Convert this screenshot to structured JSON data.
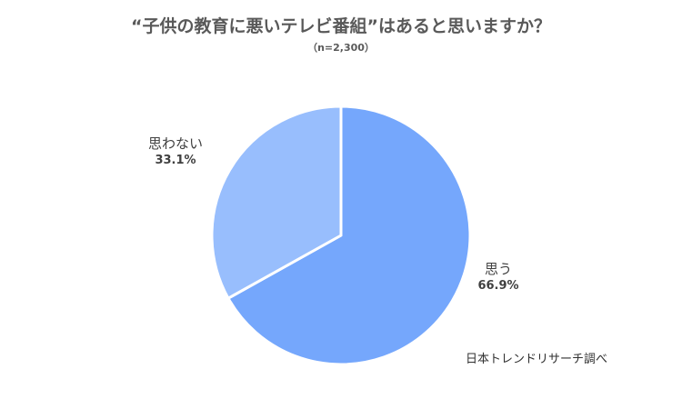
{
  "chart_data": {
    "type": "pie",
    "title": "“子供の教育に悪いテレビ番組”はあると思いますか？",
    "subtitle": "（n=2,300）",
    "slices": [
      {
        "label": "思う",
        "value": 66.9,
        "value_label": "66.9%",
        "color": "#75A7FC"
      },
      {
        "label": "思わない",
        "value": 33.1,
        "value_label": "33.1%",
        "color": "#98BEFD"
      }
    ],
    "start_angle": "12 o'clock, clockwise",
    "legend": "none (labels beside slices)"
  },
  "source": "日本トレンドリサーチ調べ"
}
